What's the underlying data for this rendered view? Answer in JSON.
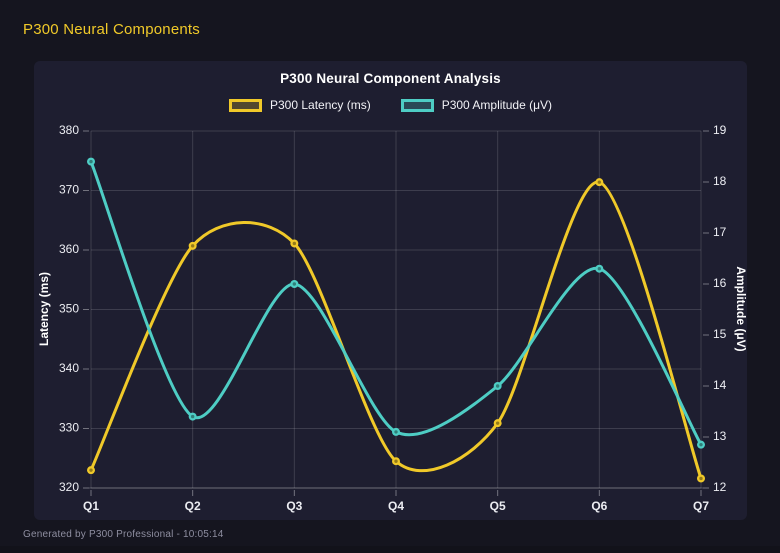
{
  "header": {
    "title": "P300 Neural Components"
  },
  "footer": {
    "text": "Generated by P300 Professional - 10:05:14"
  },
  "chart_data": {
    "type": "line",
    "title": "P300 Neural Component Analysis",
    "categories": [
      "Q1",
      "Q2",
      "Q3",
      "Q4",
      "Q5",
      "Q6",
      "Q7"
    ],
    "series": [
      {
        "name": "P300 Latency (ms)",
        "axis": "left",
        "color": "#f0c929",
        "values": [
          323,
          360.7,
          361.1,
          324.5,
          330.9,
          371.4,
          321.6
        ]
      },
      {
        "name": "P300 Amplitude (μV)",
        "axis": "right",
        "color": "#4ecdc4",
        "values": [
          18.4,
          13.4,
          16.0,
          13.1,
          14.0,
          16.3,
          12.85
        ]
      }
    ],
    "axes": {
      "left": {
        "label": "Latency (ms)",
        "min": 320,
        "max": 380,
        "step": 10
      },
      "right": {
        "label": "Amplitude (μV)",
        "min": 12,
        "max": 19,
        "step": 1
      }
    },
    "legend_position": "top",
    "grid": true,
    "curve": "smooth"
  },
  "colors": {
    "page_background": "#15151f",
    "card_background": "#1e1e30",
    "latency_yellow": "#f0c929",
    "amplitude_teal": "#4ecdc4",
    "grid_line": "rgba(255,255,255,0.14)",
    "tick_mark": "rgba(255,255,255,0.38)",
    "tick_text": "#ecedf2",
    "muted_text": "#8e8ea0"
  }
}
